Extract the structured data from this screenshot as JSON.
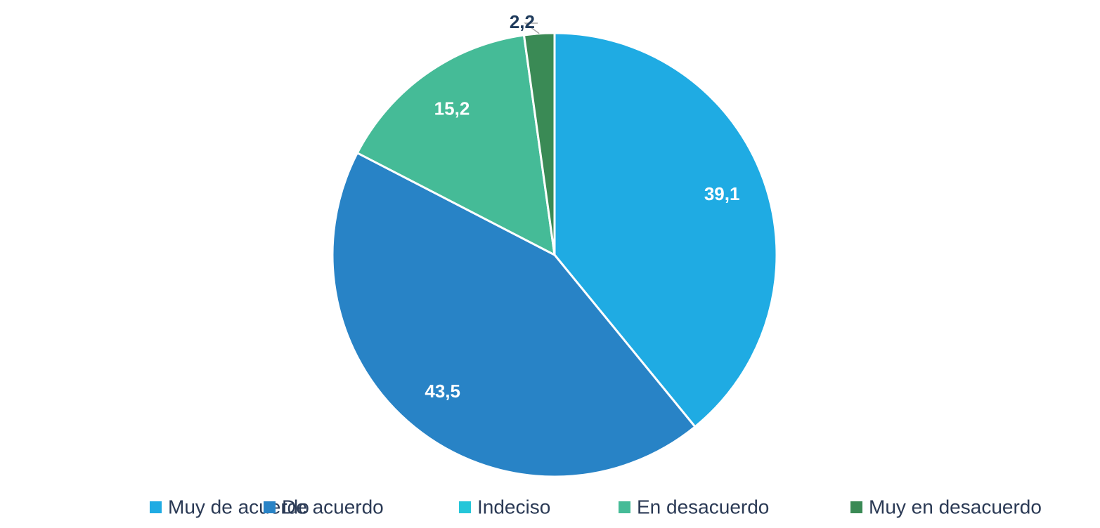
{
  "chart_data": {
    "type": "pie",
    "categories": [
      "Muy de acuerdo",
      "De acuerdo",
      "Indeciso",
      "En desacuerdo",
      "Muy en desacuerdo"
    ],
    "values": [
      39.1,
      43.5,
      0,
      15.2,
      2.2
    ],
    "value_labels": [
      "39,1",
      "43,5",
      null,
      "15,2",
      "2,2"
    ],
    "colors": [
      "#1fabe3",
      "#2883c6",
      "#25c6d9",
      "#45bb97",
      "#3a8a55"
    ],
    "legend": "bottom"
  }
}
